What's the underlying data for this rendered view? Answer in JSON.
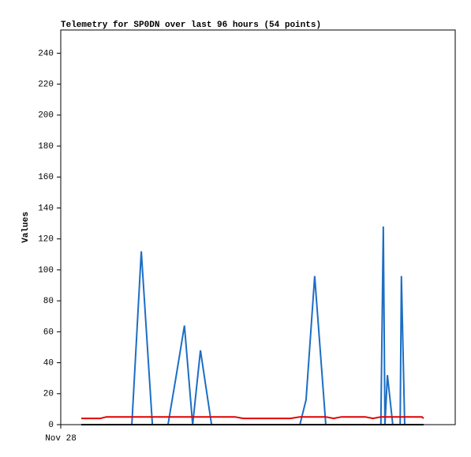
{
  "chart_data": {
    "type": "line",
    "title": "Telemetry for SP0DN over last 96 hours (54 points)",
    "y_label": "Values",
    "x": [
      5.0,
      6.5,
      8.1,
      9.6,
      11.1,
      12.7,
      14.2,
      15.7,
      17.3,
      19.6,
      22.3,
      24.2,
      26.1,
      28.0,
      30.1,
      32.1,
      34.0,
      36.7,
      38.6,
      40.5,
      42.4,
      44.4,
      46.3,
      48.2,
      50.1,
      52.0,
      53.9,
      55.9,
      58.2,
      59.7,
      61.8,
      64.5,
      66.4,
      68.3,
      70.2,
      72.1,
      74.1,
      76.0,
      77.9,
      78.5,
      78.9,
      79.5,
      80.8,
      81.8,
      82.6,
      82.9,
      83.7,
      84.5,
      85.2,
      86.0,
      86.8,
      87.6,
      87.9,
      88.3
    ],
    "xlim": [
      0,
      96
    ],
    "xticks": [
      {
        "value": 0,
        "label": "Nov 28"
      }
    ],
    "ylim": [
      0,
      255
    ],
    "yticks": [
      0,
      20,
      40,
      60,
      80,
      100,
      120,
      140,
      160,
      180,
      200,
      220,
      240
    ],
    "grid": false,
    "series": [
      {
        "color": "#1c6ec4",
        "values": [
          0,
          0,
          0,
          0,
          0,
          0,
          0,
          0,
          0,
          112,
          0,
          0,
          0,
          30,
          64,
          0,
          48,
          0,
          0,
          0,
          0,
          0,
          0,
          0,
          0,
          0,
          0,
          0,
          0,
          16,
          96,
          0,
          0,
          0,
          0,
          0,
          0,
          0,
          0,
          128,
          0,
          32,
          0,
          0,
          0,
          96,
          0,
          0,
          0,
          0,
          0,
          0,
          0,
          0
        ]
      },
      {
        "color": "#e00000",
        "values": [
          4,
          4,
          4,
          4,
          5,
          5,
          5,
          5,
          5,
          5,
          5,
          5,
          5,
          5,
          5,
          5,
          5,
          5,
          5,
          5,
          5,
          4,
          4,
          4,
          4,
          4,
          4,
          4,
          5,
          5,
          5,
          5,
          4,
          5,
          5,
          5,
          5,
          4,
          5,
          5,
          5,
          5,
          5,
          5,
          5,
          5,
          5,
          5,
          5,
          5,
          5,
          5,
          5,
          4
        ]
      },
      {
        "color": "#000000",
        "values": [
          0,
          0,
          0,
          0,
          0,
          0,
          0,
          0,
          0,
          0,
          0,
          0,
          0,
          0,
          0,
          0,
          0,
          0,
          0,
          0,
          0,
          0,
          0,
          0,
          0,
          0,
          0,
          0,
          0,
          0,
          0,
          0,
          0,
          0,
          0,
          0,
          0,
          0,
          0,
          0,
          0,
          0,
          0,
          0,
          0,
          0,
          0,
          0,
          0,
          0,
          0,
          0,
          0,
          0
        ]
      }
    ]
  }
}
